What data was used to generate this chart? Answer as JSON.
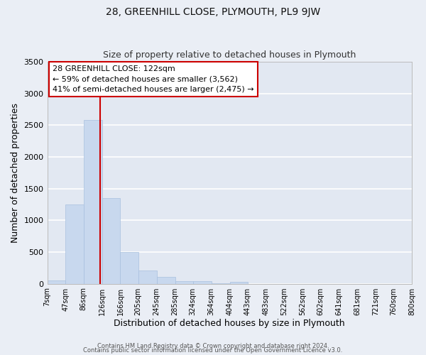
{
  "title": "28, GREENHILL CLOSE, PLYMOUTH, PL9 9JW",
  "subtitle": "Size of property relative to detached houses in Plymouth",
  "xlabel": "Distribution of detached houses by size in Plymouth",
  "ylabel": "Number of detached properties",
  "bar_color": "#c8d8ee",
  "bar_edge_color": "#a8c0de",
  "fig_bg_color": "#eaeef5",
  "axes_bg_color": "#e2e8f2",
  "grid_color": "#ffffff",
  "vline_value": 122,
  "vline_color": "#cc0000",
  "bin_edges": [
    7,
    47,
    86,
    126,
    166,
    205,
    245,
    285,
    324,
    364,
    404,
    443,
    483,
    522,
    562,
    602,
    641,
    681,
    721,
    760,
    800
  ],
  "bin_labels": [
    "7sqm",
    "47sqm",
    "86sqm",
    "126sqm",
    "166sqm",
    "205sqm",
    "245sqm",
    "285sqm",
    "324sqm",
    "364sqm",
    "404sqm",
    "443sqm",
    "483sqm",
    "522sqm",
    "562sqm",
    "602sqm",
    "641sqm",
    "681sqm",
    "721sqm",
    "760sqm",
    "800sqm"
  ],
  "bar_heights": [
    50,
    1250,
    2580,
    1350,
    500,
    210,
    105,
    45,
    40,
    5,
    30,
    0,
    0,
    0,
    0,
    0,
    0,
    0,
    0,
    0
  ],
  "ylim": [
    0,
    3500
  ],
  "yticks": [
    0,
    500,
    1000,
    1500,
    2000,
    2500,
    3000,
    3500
  ],
  "annotation_title": "28 GREENHILL CLOSE: 122sqm",
  "annotation_line1": "← 59% of detached houses are smaller (3,562)",
  "annotation_line2": "41% of semi-detached houses are larger (2,475) →",
  "annotation_box_color": "#ffffff",
  "annotation_box_edge": "#cc0000",
  "footer_line1": "Contains HM Land Registry data © Crown copyright and database right 2024.",
  "footer_line2": "Contains public sector information licensed under the Open Government Licence v3.0."
}
